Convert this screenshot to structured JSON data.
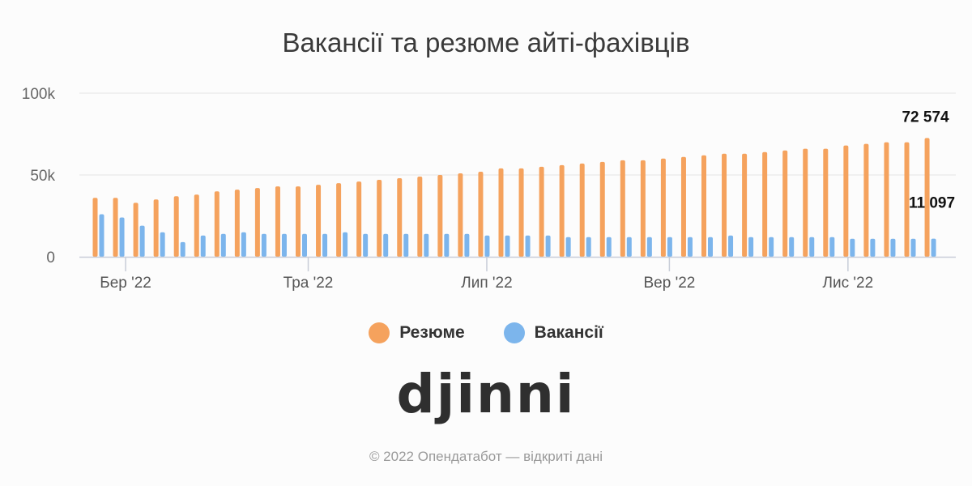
{
  "chart_data": {
    "type": "bar",
    "title": "Вакансії та резюме айті-фахівців",
    "ylim": [
      0,
      100000
    ],
    "y_ticks": [
      {
        "value": 0,
        "label": "0"
      },
      {
        "value": 50000,
        "label": "50k"
      },
      {
        "value": 100000,
        "label": "100k"
      }
    ],
    "x_tick_labels": [
      {
        "index": 1.5,
        "label": "Бер '22"
      },
      {
        "index": 10.5,
        "label": "Тра '22"
      },
      {
        "index": 19.3,
        "label": "Лип '22"
      },
      {
        "index": 28.3,
        "label": "Вер '22"
      },
      {
        "index": 37.1,
        "label": "Лис '22"
      }
    ],
    "grid": true,
    "legend_position": "bottom",
    "series": [
      {
        "name": "Резюме",
        "color": "#f5a25d",
        "values": [
          36000,
          36000,
          33000,
          35000,
          37000,
          38000,
          40000,
          41000,
          42000,
          43000,
          43000,
          44000,
          45000,
          46000,
          47000,
          48000,
          49000,
          50000,
          51000,
          52000,
          54000,
          54000,
          55000,
          56000,
          57000,
          58000,
          59000,
          59000,
          60000,
          61000,
          62000,
          63000,
          63000,
          64000,
          65000,
          66000,
          66000,
          68000,
          69000,
          70000,
          70000,
          72574
        ]
      },
      {
        "name": "Вакансії",
        "color": "#7cb5ec",
        "values": [
          26000,
          24000,
          19000,
          15000,
          9000,
          13000,
          14000,
          15000,
          14000,
          14000,
          14000,
          14000,
          15000,
          14000,
          14000,
          14000,
          14000,
          14000,
          14000,
          13000,
          13000,
          13000,
          13000,
          12000,
          12000,
          12000,
          12000,
          12000,
          12000,
          12000,
          12000,
          13000,
          12000,
          12000,
          12000,
          12000,
          12000,
          11000,
          11000,
          11000,
          11000,
          11097
        ]
      }
    ],
    "data_labels": [
      {
        "series": 0,
        "index": 41,
        "text": "72 574"
      },
      {
        "series": 1,
        "index": 41,
        "text": "11 097"
      }
    ]
  },
  "legend": [
    {
      "label": "Резюме",
      "color": "#f5a25d"
    },
    {
      "label": "Вакансії",
      "color": "#7cb5ec"
    }
  ],
  "logo_text": "djinni",
  "footer": "© 2022 Опендатабот — відкриті дані"
}
